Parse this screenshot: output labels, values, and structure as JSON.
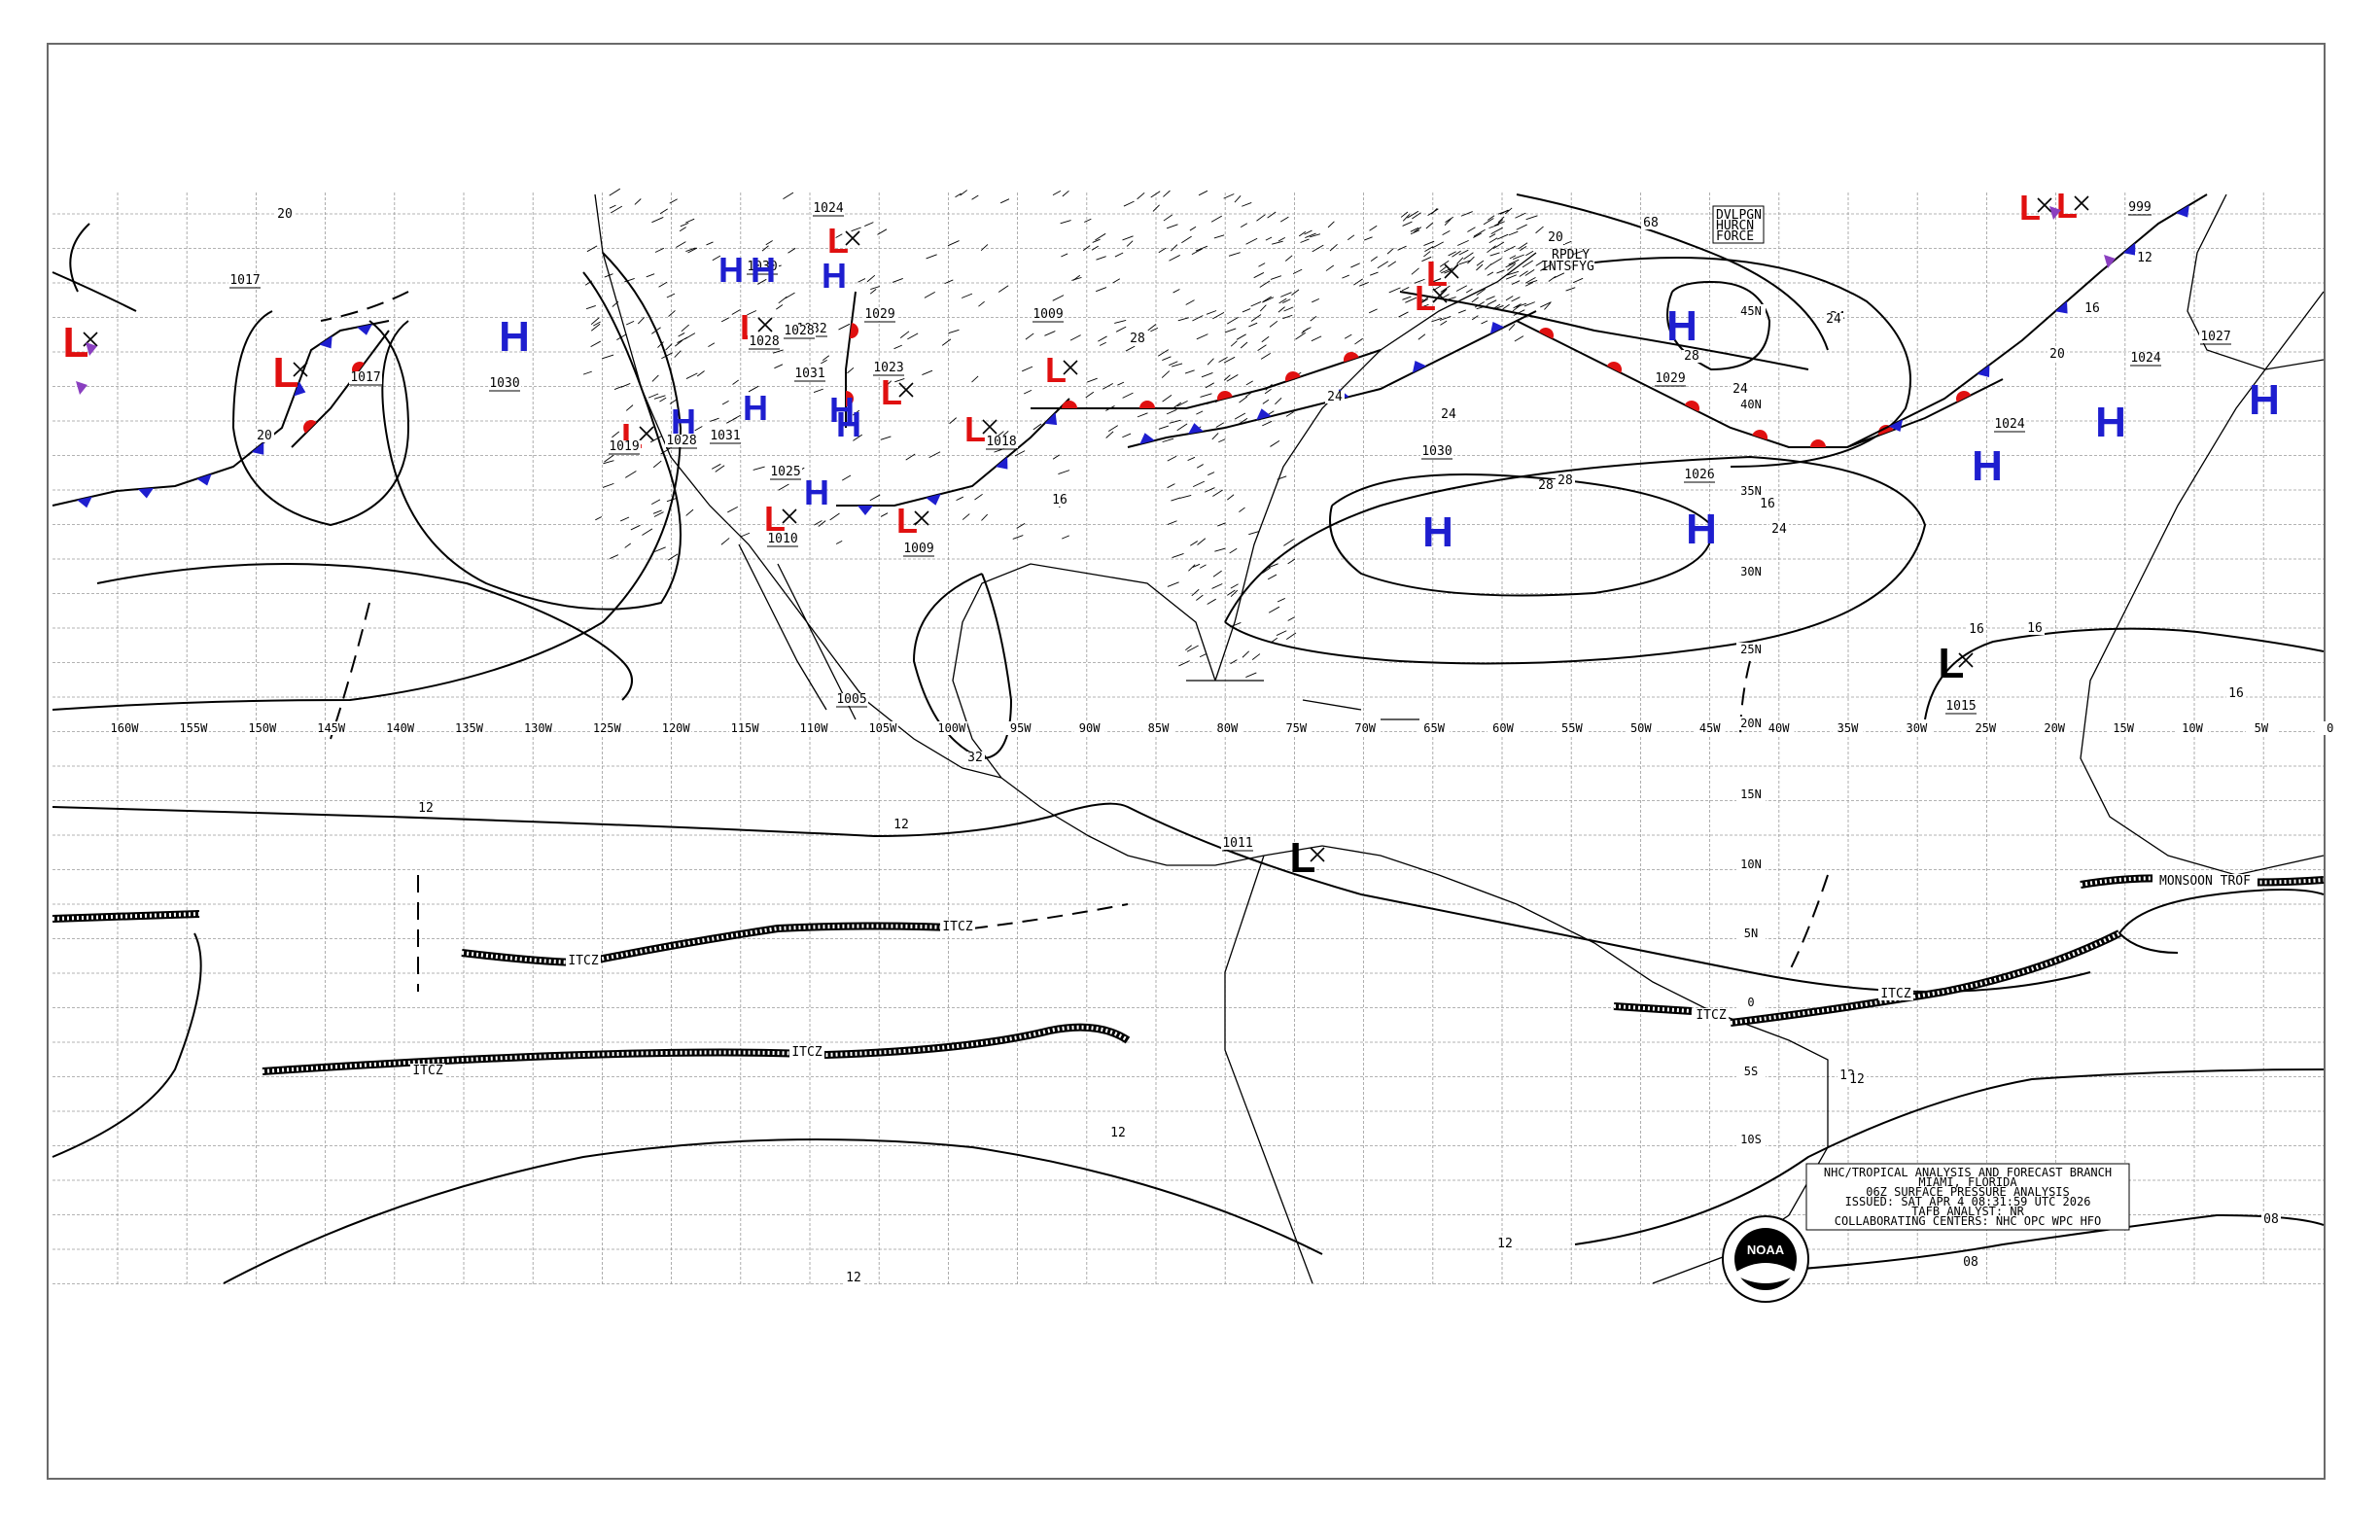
{
  "map": {
    "longitude_labels": [
      "160W",
      "155W",
      "150W",
      "145W",
      "140W",
      "135W",
      "130W",
      "125W",
      "120W",
      "115W",
      "110W",
      "105W",
      "100W",
      "95W",
      "90W",
      "85W",
      "80W",
      "75W",
      "70W",
      "65W",
      "60W",
      "55W",
      "50W",
      "45W",
      "40W",
      "35W",
      "30W",
      "25W",
      "20W",
      "15W",
      "10W",
      "5W",
      "0"
    ],
    "latitude_labels": [
      "45N",
      "40N",
      "35N",
      "30N",
      "25N",
      "20N",
      "15N",
      "10N",
      "5N",
      "0",
      "5S",
      "10S"
    ],
    "pressure_centers": [
      {
        "type": "H",
        "color": "#1e1ecf",
        "pressure": "1030"
      },
      {
        "type": "H",
        "color": "#1e1ecf",
        "pressure": "1030"
      },
      {
        "type": "H",
        "color": "#1e1ecf",
        "pressure": "1032"
      },
      {
        "type": "H",
        "color": "#1e1ecf",
        "pressure": "1031"
      },
      {
        "type": "H",
        "color": "#1e1ecf",
        "pressure": "1028"
      },
      {
        "type": "H",
        "color": "#1e1ecf",
        "pressure": "1031"
      },
      {
        "type": "H",
        "color": "#1e1ecf",
        "pressure": "1028"
      },
      {
        "type": "H",
        "color": "#1e1ecf",
        "pressure": "1029"
      },
      {
        "type": "H",
        "color": "#1e1ecf",
        "pressure": "1025"
      },
      {
        "type": "H",
        "color": "#1e1ecf",
        "pressure": "1030"
      },
      {
        "type": "H",
        "color": "#1e1ecf",
        "pressure": "1029"
      },
      {
        "type": "H",
        "color": "#1e1ecf",
        "pressure": "1026"
      },
      {
        "type": "H",
        "color": "#1e1ecf",
        "pressure": "1024"
      },
      {
        "type": "H",
        "color": "#1e1ecf",
        "pressure": "1024"
      },
      {
        "type": "H",
        "color": "#1e1ecf",
        "pressure": "1027"
      },
      {
        "type": "L",
        "color": "#e01010",
        "pressure": "1017"
      },
      {
        "type": "L",
        "color": "#e01010",
        "pressure": "1017"
      },
      {
        "type": "L",
        "color": "#e01010",
        "pressure": "1024"
      },
      {
        "type": "L",
        "color": "#e01010",
        "pressure": "1028"
      },
      {
        "type": "L",
        "color": "#e01010",
        "pressure": "1019"
      },
      {
        "type": "L",
        "color": "#e01010",
        "pressure": "1010"
      },
      {
        "type": "L",
        "color": "#e01010",
        "pressure": "1023"
      },
      {
        "type": "L",
        "color": "#e01010",
        "pressure": "1018"
      },
      {
        "type": "L",
        "color": "#e01010",
        "pressure": "1009"
      },
      {
        "type": "L",
        "color": "#e01010",
        "pressure": "1009"
      },
      {
        "type": "L",
        "color": "#e01010",
        "pressure": "1005"
      },
      {
        "type": "L",
        "color": "#e01010",
        "pressure": ""
      },
      {
        "type": "L",
        "color": "#e01010",
        "pressure": "999"
      },
      {
        "type": "L",
        "color": "#000000",
        "pressure": "1015"
      },
      {
        "type": "L",
        "color": "#000000",
        "pressure": "1011"
      },
      {
        "type": "L",
        "color": "#e01010",
        "pressure": ""
      }
    ],
    "isobar_labels": [
      "20",
      "20",
      "20",
      "24",
      "24",
      "24",
      "24",
      "24",
      "28",
      "28",
      "28",
      "28",
      "12",
      "12",
      "12",
      "12",
      "12",
      "12",
      "16",
      "16",
      "16",
      "16",
      "16",
      "08",
      "08",
      "32",
      "68",
      "24",
      "20",
      "16",
      "12",
      "12"
    ],
    "feature_labels": [
      "ITCZ",
      "ITCZ",
      "ITCZ",
      "ITCZ",
      "ITCZ",
      "ITCZ",
      "MONSOON TROF"
    ],
    "warning_box": [
      "DVLPGN",
      "HURCN",
      "FORCE"
    ],
    "warning_text": [
      "RPDLY",
      "INTSFYG"
    ]
  },
  "title_block": {
    "lines": [
      "NHC/TROPICAL ANALYSIS AND FORECAST BRANCH",
      "MIAMI, FLORIDA",
      "06Z SURFACE PRESSURE ANALYSIS",
      "ISSUED: SAT APR 4 08:31:59 UTC 2026",
      "TAFB ANALYST: NR",
      "COLLABORATING CENTERS: NHC OPC WPC HFO"
    ]
  },
  "logo": {
    "text": "NOAA"
  }
}
